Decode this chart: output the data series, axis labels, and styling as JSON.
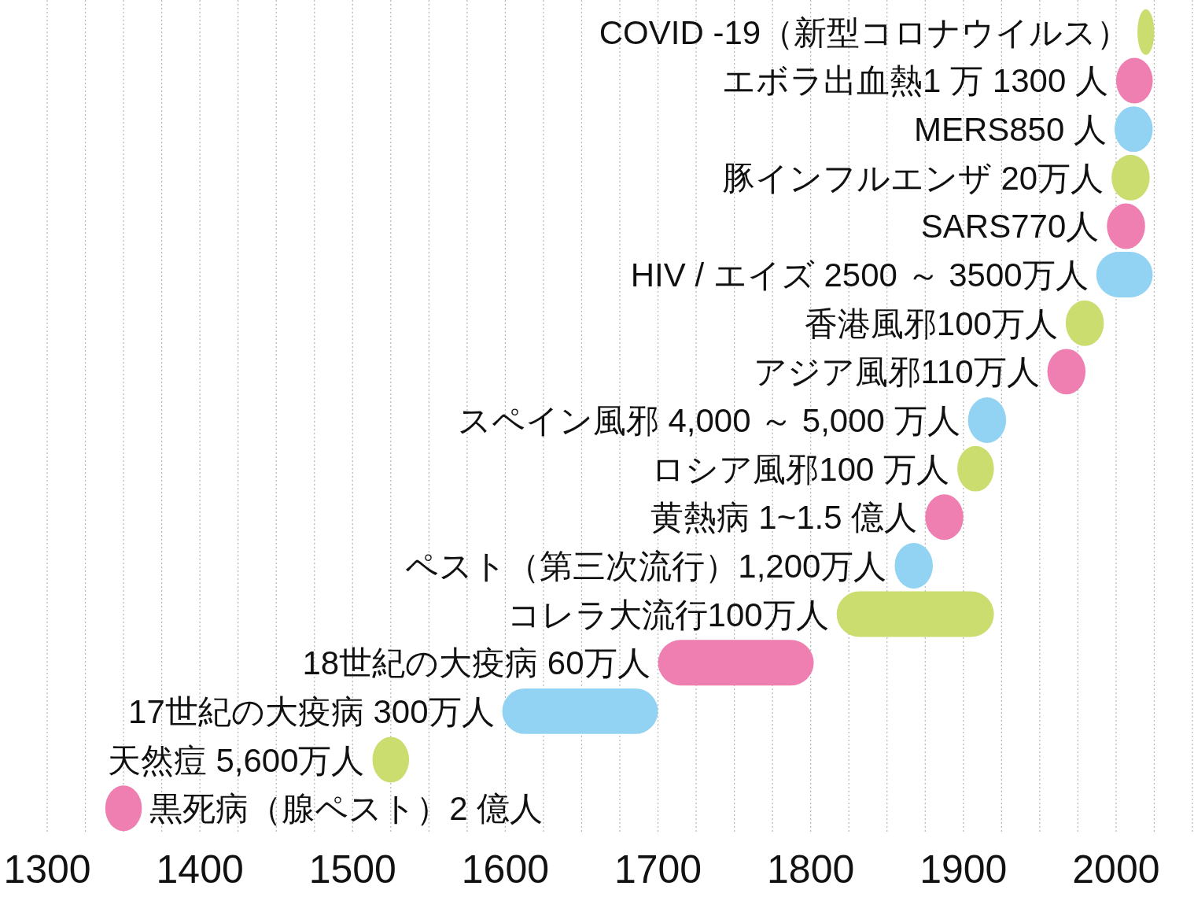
{
  "chart_data": {
    "type": "bar",
    "orientation": "horizontal",
    "categories": [
      "COVID -19（新型コロナウイルス）",
      "エボラ出血熱1 万 1300 人",
      "MERS850 人",
      "豚インフルエンザ 20万人",
      "SARS770人",
      "HIV / エイズ 2500 ～ 3500万人",
      "香港風邪100万人",
      "アジア風邪110万人",
      "スペイン風邪 4,000 ～ 5,000 万人",
      "ロシア風邪100 万人",
      "黄熱病 1~1.5 億人",
      "ペスト（第三次流行）1,200万人",
      "コレラ大流行100万人",
      "18世紀の大疫病 60万人",
      "17世紀の大疫病 300万人",
      "天然痘 5,600万人",
      "黒死病（腺ペスト）2 億人"
    ],
    "base": [
      2014,
      2000,
      1999,
      1997,
      1994,
      1987,
      1967,
      1955,
      1903,
      1896,
      1875,
      1855,
      1817,
      1700,
      1598,
      1513,
      1338
    ],
    "values": [
      11,
      24,
      25,
      25,
      25,
      37,
      25,
      25,
      25,
      24,
      25,
      25,
      103,
      102,
      102,
      24,
      24
    ],
    "colors": [
      "#cbdd6f",
      "#ee7fb0",
      "#92d3f3",
      "#cbdd6f",
      "#ee7fb0",
      "#92d3f3",
      "#cbdd6f",
      "#ee7fb0",
      "#92d3f3",
      "#cbdd6f",
      "#ee7fb0",
      "#92d3f3",
      "#cbdd6f",
      "#ee7fb0",
      "#92d3f3",
      "#cbdd6f",
      "#ee7fb0"
    ],
    "xlim": [
      1300,
      2050
    ],
    "xticks": [
      1300,
      {
        "value": 1325,
        "label": null
      },
      {
        "value": 1350,
        "label": null
      },
      {
        "value": 1375,
        "label": null
      },
      1400,
      {
        "value": 1425,
        "label": null
      },
      {
        "value": 1450,
        "label": null
      },
      {
        "value": 1475,
        "label": null
      },
      1500,
      {
        "value": 1525,
        "label": null
      },
      {
        "value": 1550,
        "label": null
      },
      {
        "value": 1575,
        "label": null
      },
      1600,
      {
        "value": 1625,
        "label": null
      },
      {
        "value": 1650,
        "label": null
      },
      {
        "value": 1675,
        "label": null
      },
      1700,
      {
        "value": 1725,
        "label": null
      },
      {
        "value": 1750,
        "label": null
      },
      {
        "value": 1775,
        "label": null
      },
      1800,
      {
        "value": 1825,
        "label": null
      },
      {
        "value": 1850,
        "label": null
      },
      {
        "value": 1875,
        "label": null
      },
      1900,
      {
        "value": 1925,
        "label": null
      },
      {
        "value": 1950,
        "label": null
      },
      {
        "value": 1975,
        "label": null
      },
      2000,
      {
        "value": 2025,
        "label": null
      },
      {
        "value": 2050,
        "label": null
      }
    ],
    "grid": "x"
  }
}
